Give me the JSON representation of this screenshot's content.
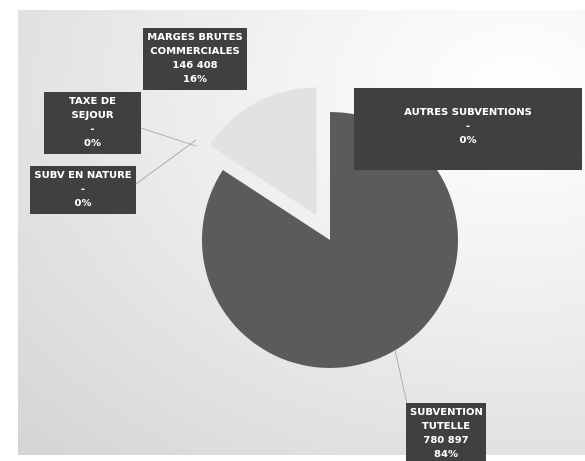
{
  "chart_data": {
    "type": "pie",
    "categories": [
      "SUBVENTION TUTELLE",
      "MARGES BRUTES COMMERCIALES",
      "TAXE DE SEJOUR",
      "SUBV EN NATURE",
      "AUTRES SUBVENTIONS"
    ],
    "values": [
      780897,
      146408,
      0,
      0,
      0
    ],
    "value_labels": [
      "780 897",
      "146 408",
      "-",
      "-",
      "-"
    ],
    "percents": [
      84,
      16,
      0,
      0,
      0
    ],
    "percent_labels": [
      "84%",
      "16%",
      "0%",
      "0%",
      "0%"
    ],
    "colors": [
      "#5b5b5b",
      "#e2e2e2",
      "#8a8a8a",
      "#9a9a9a",
      "#aaaaaa"
    ],
    "exploded": [
      false,
      true,
      false,
      false,
      false
    ]
  }
}
